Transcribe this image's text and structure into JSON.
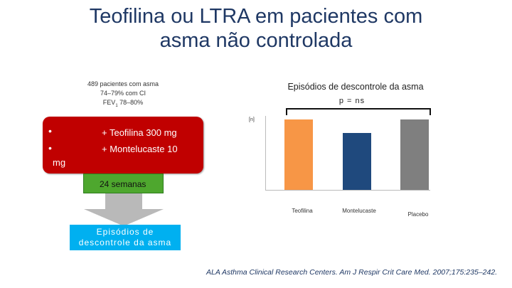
{
  "slide": {
    "title_line1": "Teofilina ou LTRA em pacientes com",
    "title_line2": "asma não controlada",
    "population": {
      "line1": "489 pacientes com asma",
      "line2": "74–79% com CI",
      "line3": "FEV",
      "line3_sub": "1",
      "line3_rest": " 78–80%"
    },
    "arms": {
      "bullet": "•",
      "arm1": "+ Teofilina 300 mg",
      "arm2": "+ Montelucaste 10",
      "arm2_wrap": "mg"
    },
    "duration": "24 semanas",
    "outcome_line1": "Episódios de",
    "outcome_line2": "descontrole da asma",
    "citation": "ALA Asthma Clinical Research Centers.  Am J Respir Crit Care Med. 2007;175:235–242."
  },
  "chart_data": {
    "type": "bar",
    "title": "Episódios de descontrole da asma",
    "annotation": "p = ns",
    "ylabel": "[n]",
    "categories": [
      "Teofilina",
      "Montelucaste",
      "Placebo"
    ],
    "values": [
      100,
      81,
      100
    ],
    "ylim": [
      0,
      105
    ],
    "colors": [
      "#f79646",
      "#1f497d",
      "#7f7f7f"
    ],
    "grid": false
  }
}
